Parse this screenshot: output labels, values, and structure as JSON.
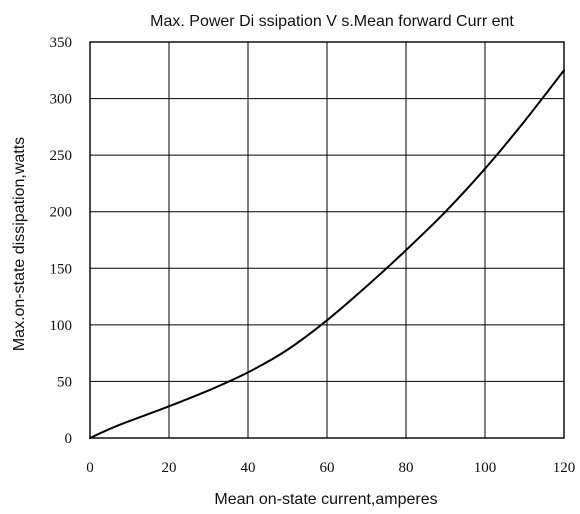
{
  "chart_data": {
    "type": "line",
    "title": "Max. Power Di ssipation V s.Mean forward Curr ent",
    "xlabel": "Mean on-state current,amperes",
    "ylabel": "Max.on-state dissipation,watts",
    "xlim": [
      0,
      120
    ],
    "ylim": [
      0,
      350
    ],
    "x_ticks": [
      0,
      20,
      40,
      60,
      80,
      100,
      120
    ],
    "y_ticks": [
      0,
      50,
      100,
      150,
      200,
      250,
      300,
      350
    ],
    "grid": true,
    "series": [
      {
        "x": [
          0,
          5,
          10,
          20,
          30,
          40,
          50,
          60,
          70,
          80,
          90,
          100,
          110,
          120
        ],
        "values": [
          0,
          8,
          15,
          28,
          42,
          58,
          78,
          104,
          134,
          166,
          200,
          238,
          280,
          325
        ]
      }
    ]
  }
}
